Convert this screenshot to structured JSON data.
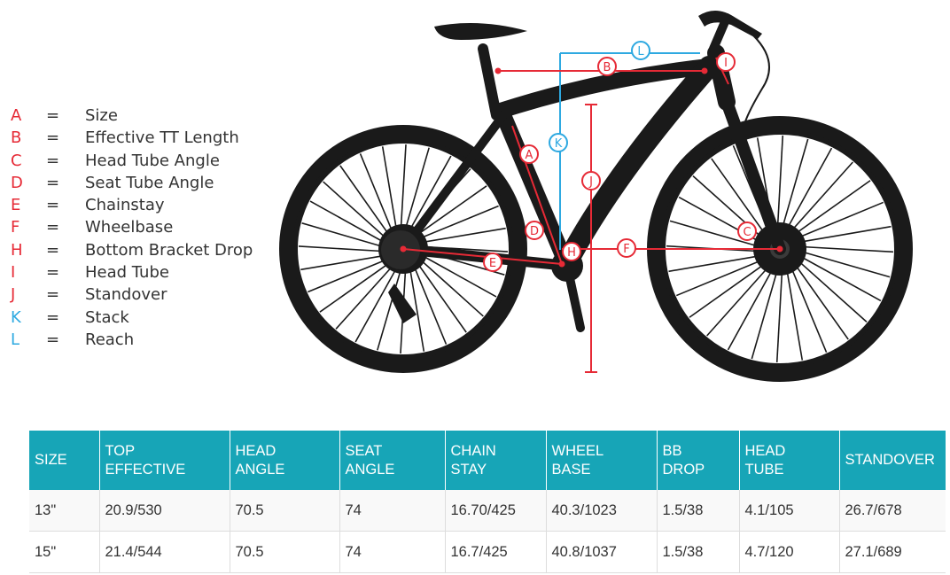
{
  "colors": {
    "accent_red": "#e62a36",
    "accent_blue": "#2ea9e1",
    "header_teal": "#17a5b7",
    "frame": "#1a1a1a"
  },
  "legend": [
    {
      "letter": "A",
      "eq": "=",
      "label": "Size",
      "color": "#e62a36"
    },
    {
      "letter": "B",
      "eq": "=",
      "label": "Effective TT Length",
      "color": "#e62a36"
    },
    {
      "letter": "C",
      "eq": "=",
      "label": "Head Tube Angle",
      "color": "#e62a36"
    },
    {
      "letter": "D",
      "eq": "=",
      "label": "Seat Tube Angle",
      "color": "#e62a36"
    },
    {
      "letter": "E",
      "eq": "=",
      "label": "Chainstay",
      "color": "#e62a36"
    },
    {
      "letter": "F",
      "eq": "=",
      "label": "Wheelbase",
      "color": "#e62a36"
    },
    {
      "letter": "H",
      "eq": "=",
      "label": "Bottom Bracket Drop",
      "color": "#e62a36"
    },
    {
      "letter": "I",
      "eq": "=",
      "label": "Head Tube",
      "color": "#e62a36"
    },
    {
      "letter": "J",
      "eq": "=",
      "label": "Standover",
      "color": "#e62a36"
    },
    {
      "letter": "K",
      "eq": "=",
      "label": "Stack",
      "color": "#2ea9e1"
    },
    {
      "letter": "L",
      "eq": "=",
      "label": "Reach",
      "color": "#2ea9e1"
    }
  ],
  "diagram_markers": [
    {
      "id": "L",
      "color": "#2ea9e1"
    },
    {
      "id": "B",
      "color": "#e62a36"
    },
    {
      "id": "I",
      "color": "#e62a36"
    },
    {
      "id": "A",
      "color": "#e62a36"
    },
    {
      "id": "K",
      "color": "#2ea9e1"
    },
    {
      "id": "J",
      "color": "#e62a36"
    },
    {
      "id": "D",
      "color": "#e62a36"
    },
    {
      "id": "C",
      "color": "#e62a36"
    },
    {
      "id": "H",
      "color": "#e62a36"
    },
    {
      "id": "F",
      "color": "#e62a36"
    },
    {
      "id": "E",
      "color": "#e62a36"
    }
  ],
  "table": {
    "headers": [
      [
        "SIZE"
      ],
      [
        "TOP",
        "EFFECTIVE"
      ],
      [
        "HEAD",
        "ANGLE"
      ],
      [
        "SEAT",
        "ANGLE"
      ],
      [
        "CHAIN",
        "STAY"
      ],
      [
        "WHEEL",
        "BASE"
      ],
      [
        "BB",
        "DROP"
      ],
      [
        "HEAD",
        "TUBE"
      ],
      [
        "STANDOVER"
      ]
    ],
    "rows": [
      [
        "13\"",
        "20.9/530",
        "70.5",
        "74",
        "16.70/425",
        "40.3/1023",
        "1.5/38",
        "4.1/105",
        "26.7/678"
      ],
      [
        "15\"",
        "21.4/544",
        "70.5",
        "74",
        "16.7/425",
        "40.8/1037",
        "1.5/38",
        "4.7/120",
        "27.1/689"
      ]
    ]
  }
}
